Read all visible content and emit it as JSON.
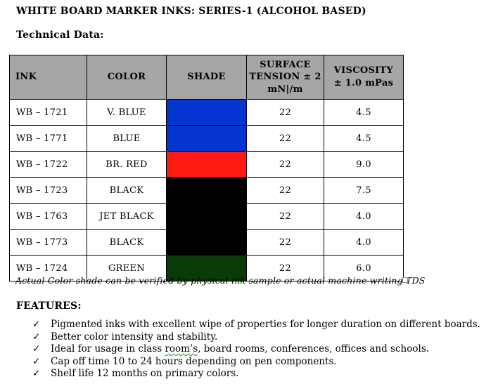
{
  "title": "WHITE BOARD MARKER INKS: SERIES-1 (ALCOHOL BASED)",
  "technical_data_heading": "Technical Data:",
  "table": {
    "header_bg": "#a6a6a6",
    "headers": [
      "INK",
      "COLOR",
      "SHADE",
      "SURFACE\nTENSION ± 2\nmN|/m",
      "VISCOSITY\n± 1.0 mPas"
    ],
    "rows": [
      {
        "ink": "WB – 1721",
        "color": "V. BLUE",
        "shade_hex": "#0535d0",
        "surface_tension": "22",
        "viscosity": "4.5"
      },
      {
        "ink": "WB – 1771",
        "color": "BLUE",
        "shade_hex": "#0535d0",
        "surface_tension": "22",
        "viscosity": "4.5"
      },
      {
        "ink": "WB – 1722",
        "color": "BR. RED",
        "shade_hex": "#fe1b14",
        "surface_tension": "22",
        "viscosity": "9.0"
      },
      {
        "ink": "WB – 1723",
        "color": "BLACK",
        "shade_hex": "#000000",
        "surface_tension": "22",
        "viscosity": "7.5"
      },
      {
        "ink": "WB – 1763",
        "color": "JET BLACK",
        "shade_hex": "#000000",
        "surface_tension": "22",
        "viscosity": "4.0"
      },
      {
        "ink": "WB – 1773",
        "color": "BLACK",
        "shade_hex": "#000000",
        "surface_tension": "22",
        "viscosity": "4.0"
      },
      {
        "ink": "WB – 1724",
        "color": "GREEN",
        "shade_hex": "#0a3a05",
        "surface_tension": "22",
        "viscosity": "6.0"
      }
    ],
    "footnote": "Actual Color shade can be verified by physical ink sample or actual machine writing TDS"
  },
  "features": {
    "heading": "FEATURES:",
    "bullet_glyph": "✓",
    "items": [
      {
        "text": "Pigmented inks with excellent wipe of properties for longer duration on different boards."
      },
      {
        "text": "Better color intensity and stability."
      },
      {
        "pre": "Ideal for usage in class ",
        "highlight": "room’s",
        "post": ", board rooms, conferences, offices and schools."
      },
      {
        "text": "Cap off time 10 to 24 hours depending on pen components."
      },
      {
        "text": "Shelf life 12 months on primary colors."
      }
    ]
  }
}
